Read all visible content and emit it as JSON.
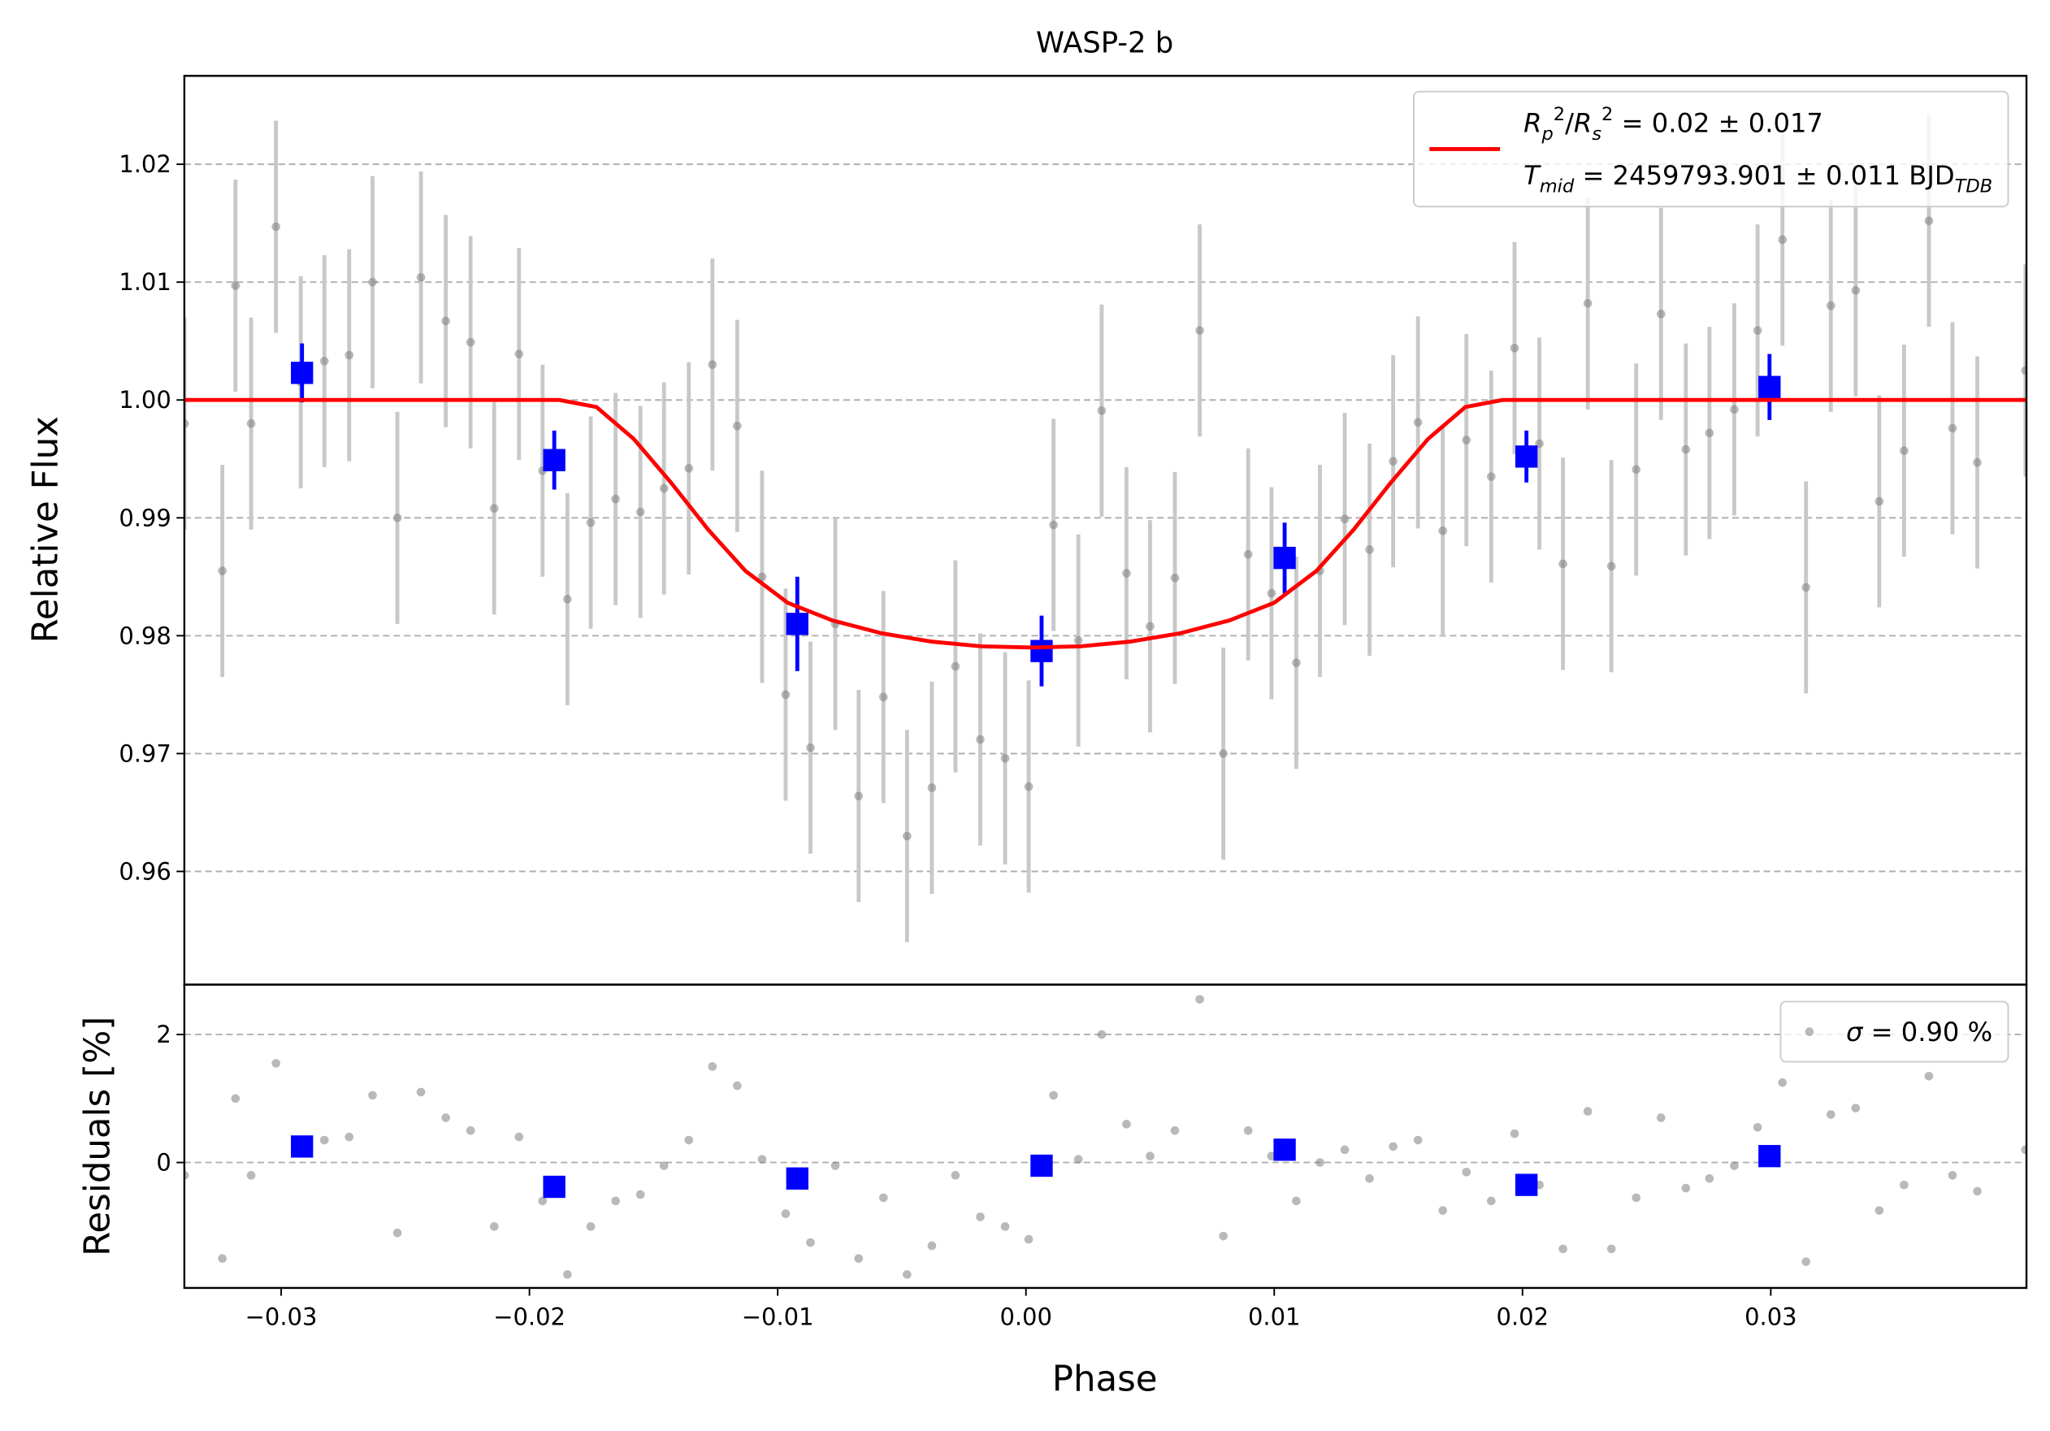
{
  "chart_data": [
    {
      "type": "scatter",
      "title": "WASP-2 b",
      "ylabel": "Relative Flux",
      "xlim": [
        -0.0339,
        0.0403
      ],
      "ylim": [
        0.9504,
        1.0275
      ],
      "yticks": [
        0.96,
        0.97,
        0.98,
        0.99,
        {
          "value": 1.0,
          "label": "1.00"
        },
        1.01,
        1.02
      ],
      "grid": true,
      "legend": "upper right",
      "series": [
        {
          "kind": "points",
          "marker": "circle",
          "color": "#808080",
          "errcolor": "#c8c8c8",
          "yerr": 0.009,
          "x": [
            -0.03389,
            -0.03237,
            -0.03184,
            -0.03121,
            -0.03021,
            -0.02921,
            -0.02826,
            -0.02726,
            -0.02632,
            -0.02532,
            -0.02437,
            -0.02337,
            -0.02237,
            -0.02142,
            -0.02042,
            -0.01947,
            -0.01847,
            -0.01753,
            -0.01653,
            -0.01553,
            -0.01458,
            -0.01358,
            -0.01263,
            -0.01163,
            -0.01063,
            -0.00968,
            -0.00868,
            -0.00768,
            -0.00674,
            -0.00574,
            -0.00479,
            -0.00379,
            -0.00284,
            -0.00184,
            -0.00084,
            0.00011,
            0.00111,
            0.00211,
            0.00305,
            0.00405,
            0.005,
            0.006,
            0.007,
            0.00795,
            0.00895,
            0.00989,
            0.01089,
            0.01184,
            0.01284,
            0.01384,
            0.01479,
            0.01579,
            0.01679,
            0.01774,
            0.01874,
            0.01968,
            0.02068,
            0.02163,
            0.02263,
            0.02358,
            0.02458,
            0.02558,
            0.02658,
            0.02753,
            0.02853,
            0.02947,
            0.03047,
            0.03142,
            0.03242,
            0.03342,
            0.03437,
            0.03537,
            0.03637,
            0.03732,
            0.03832,
            0.04026
          ],
          "values": [
            0.998,
            0.9855,
            1.0097,
            0.998,
            1.0147,
            1.0015,
            1.0033,
            1.0038,
            1.01,
            0.99,
            1.0104,
            1.0067,
            1.0049,
            0.9908,
            1.0039,
            0.994,
            0.9831,
            0.9896,
            0.9916,
            0.9905,
            0.9925,
            0.9942,
            1.003,
            0.9978,
            0.985,
            0.975,
            0.9705,
            0.981,
            0.9664,
            0.9748,
            0.963,
            0.9671,
            0.9774,
            0.9712,
            0.9696,
            0.9672,
            0.9894,
            0.9796,
            0.9991,
            0.9853,
            0.9808,
            0.9849,
            1.0059,
            0.97,
            0.9869,
            0.9836,
            0.9777,
            0.9855,
            0.9899,
            0.9873,
            0.9948,
            0.9981,
            0.9889,
            0.9966,
            0.9935,
            1.0044,
            0.9963,
            0.9861,
            1.0082,
            0.9859,
            0.9941,
            1.0073,
            0.9958,
            0.9972,
            0.9992,
            1.0059,
            1.0136,
            0.9841,
            1.008,
            1.0093,
            0.9914,
            0.9957,
            1.0152,
            0.9976,
            0.9947,
            1.0025
          ]
        },
        {
          "kind": "points",
          "marker": "square",
          "color": "#0000ff",
          "errcolor": "#0000ff",
          "x": [
            -0.02916,
            -0.019,
            -0.00921,
            0.00063,
            0.01042,
            0.02016,
            0.02995
          ],
          "values": [
            1.0023,
            0.9949,
            0.981,
            0.9787,
            0.9866,
            0.9952,
            1.0011
          ],
          "yerr": [
            0.0025,
            0.0025,
            0.004,
            0.003,
            0.003,
            0.0022,
            0.0028
          ]
        },
        {
          "kind": "line",
          "color": "#ff0000",
          "name_runs": [
            [
              {
                "text": "R",
                "italic": true
              },
              {
                "text": "p",
                "italic": true,
                "shift": "sub"
              },
              {
                "text": "2",
                "shift": "sup"
              },
              {
                "text": "/"
              },
              {
                "text": "R",
                "italic": true
              },
              {
                "text": "s",
                "italic": true,
                "shift": "sub"
              },
              {
                "text": "2",
                "shift": "sup"
              },
              {
                "text": " = 0.02 ± 0.017"
              }
            ],
            [
              {
                "text": "T",
                "italic": true
              },
              {
                "text": "mid",
                "italic": true,
                "shift": "sub"
              },
              {
                "text": " = 2459793.901 ± 0.011 BJD"
              },
              {
                "text": "TDB",
                "italic": true,
                "shift": "sub"
              }
            ]
          ],
          "x": [
            -0.0339,
            -0.0188,
            -0.0173,
            -0.0158,
            -0.0143,
            -0.0128,
            -0.0113,
            -0.0096,
            -0.0078,
            -0.0058,
            -0.0038,
            -0.0018,
            0.0002,
            0.0022,
            0.0042,
            0.0062,
            0.0082,
            0.01,
            0.0117,
            0.0132,
            0.0147,
            0.0162,
            0.0177,
            0.0192,
            0.0403
          ],
          "values": [
            1,
            1,
            0.9994,
            0.9967,
            0.993,
            0.989,
            0.9855,
            0.9828,
            0.9813,
            0.9802,
            0.9795,
            0.9791,
            0.979,
            0.9791,
            0.9795,
            0.9802,
            0.9813,
            0.9828,
            0.9855,
            0.989,
            0.993,
            0.9967,
            0.9994,
            1,
            1
          ]
        }
      ]
    },
    {
      "type": "scatter",
      "ylabel": "Residuals [%]",
      "xlabel": "Phase",
      "xlim": [
        -0.0339,
        0.0403
      ],
      "ylim": [
        -1.96,
        2.78
      ],
      "xticks": [
        {
          "value": -0.03,
          "label": "−0.03"
        },
        {
          "value": -0.02,
          "label": "−0.02"
        },
        {
          "value": -0.01,
          "label": "−0.01"
        },
        {
          "value": 0,
          "label": "0.00"
        },
        0.01,
        0.02,
        0.03
      ],
      "yticks": [
        0,
        2
      ],
      "grid": true,
      "legend": "upper right",
      "series": [
        {
          "kind": "points",
          "marker": "circle",
          "color": "#808080",
          "name_runs": [
            [
              {
                "text": "σ",
                "italic": true
              },
              {
                "text": " = 0.90 %"
              }
            ]
          ],
          "x": [
            -0.03389,
            -0.03237,
            -0.03184,
            -0.03121,
            -0.03021,
            -0.02921,
            -0.02826,
            -0.02726,
            -0.02632,
            -0.02532,
            -0.02437,
            -0.02337,
            -0.02237,
            -0.02142,
            -0.02042,
            -0.01947,
            -0.01847,
            -0.01753,
            -0.01653,
            -0.01553,
            -0.01458,
            -0.01358,
            -0.01263,
            -0.01163,
            -0.01063,
            -0.00968,
            -0.00868,
            -0.00768,
            -0.00674,
            -0.00574,
            -0.00479,
            -0.00379,
            -0.00284,
            -0.00184,
            -0.00084,
            0.00011,
            0.00111,
            0.00211,
            0.00305,
            0.00405,
            0.005,
            0.006,
            0.007,
            0.00795,
            0.00895,
            0.00989,
            0.01089,
            0.01184,
            0.01284,
            0.01384,
            0.01479,
            0.01579,
            0.01679,
            0.01774,
            0.01874,
            0.01968,
            0.02068,
            0.02163,
            0.02263,
            0.02358,
            0.02458,
            0.02558,
            0.02658,
            0.02753,
            0.02853,
            0.02947,
            0.03047,
            0.03142,
            0.03242,
            0.03342,
            0.03437,
            0.03537,
            0.03637,
            0.03732,
            0.03832,
            0.04026
          ],
          "values": [
            -0.2,
            -1.5,
            1.0,
            -0.2,
            1.55,
            0.25,
            0.35,
            0.4,
            1.05,
            -1.1,
            1.1,
            0.7,
            0.5,
            -1.0,
            0.4,
            -0.6,
            -1.75,
            -1.0,
            -0.6,
            -0.5,
            -0.05,
            0.35,
            1.5,
            1.2,
            0.05,
            -0.8,
            -1.25,
            -0.05,
            -1.5,
            -0.55,
            -1.75,
            -1.3,
            -0.2,
            -0.85,
            -1.0,
            -1.2,
            1.05,
            0.05,
            2.0,
            0.6,
            0.1,
            0.5,
            2.55,
            -1.15,
            0.5,
            0.1,
            -0.6,
            0.0,
            0.2,
            -0.25,
            0.25,
            0.35,
            -0.75,
            -0.15,
            -0.6,
            0.45,
            -0.35,
            -1.35,
            0.8,
            -1.35,
            -0.55,
            0.7,
            -0.4,
            -0.25,
            -0.05,
            0.55,
            1.25,
            -1.55,
            0.75,
            0.85,
            -0.75,
            -0.35,
            1.35,
            -0.2,
            -0.45,
            0.2
          ]
        },
        {
          "kind": "points",
          "marker": "square",
          "color": "#0000ff",
          "x": [
            -0.02916,
            -0.019,
            -0.00921,
            0.00063,
            0.01042,
            0.02016,
            0.02995
          ],
          "values": [
            0.25,
            -0.38,
            -0.25,
            -0.05,
            0.2,
            -0.35,
            0.1
          ]
        }
      ]
    }
  ]
}
